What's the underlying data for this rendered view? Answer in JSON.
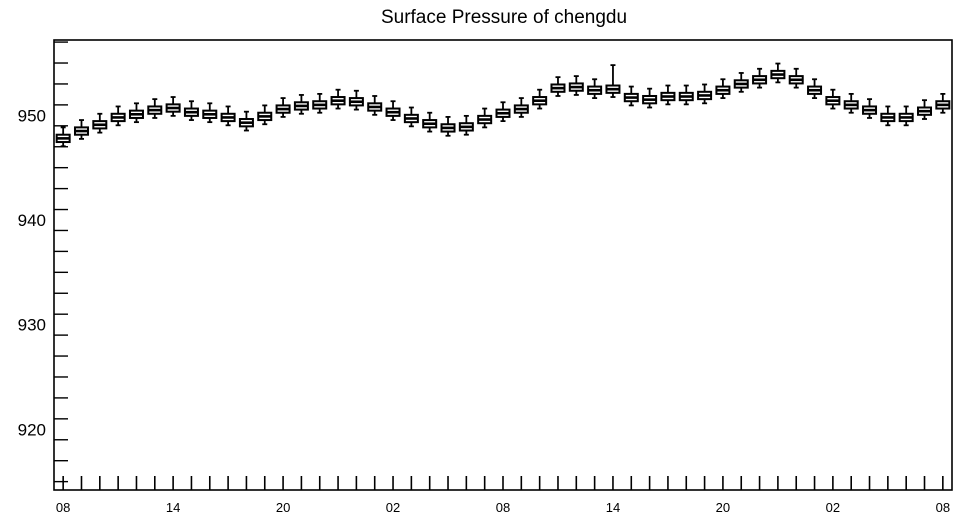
{
  "chart_data": {
    "type": "boxplot",
    "title": "Surface Pressure of chengdu",
    "xlabel": "",
    "ylabel": "",
    "grid": false,
    "legend": "none",
    "ylim": [
      914.2,
      957.2
    ],
    "x_range": [
      -0.5,
      48.5
    ],
    "y_ticks": [
      920,
      930,
      940,
      950
    ],
    "y_tick_labels": [
      "920",
      "930",
      "940",
      "950"
    ],
    "x_tick_labels": [
      {
        "index": 0,
        "label": "08"
      },
      {
        "index": 6,
        "label": "14"
      },
      {
        "index": 12,
        "label": "20"
      },
      {
        "index": 18,
        "label": "02"
      },
      {
        "index": 24,
        "label": "08"
      },
      {
        "index": 30,
        "label": "14"
      },
      {
        "index": 36,
        "label": "20"
      },
      {
        "index": 42,
        "label": "02"
      },
      {
        "index": 48,
        "label": "08"
      }
    ],
    "box_color": "#000000",
    "median_values": [
      947.8,
      948.5,
      949.1,
      949.8,
      950.1,
      950.5,
      950.7,
      950.3,
      950.1,
      949.8,
      949.3,
      949.9,
      950.6,
      950.9,
      951.0,
      951.4,
      951.3,
      950.8,
      950.3,
      949.7,
      949.2,
      948.8,
      948.9,
      949.6,
      950.2,
      950.6,
      951.4,
      952.6,
      952.7,
      952.4,
      952.5,
      951.7,
      951.5,
      951.8,
      951.8,
      951.9,
      952.4,
      953.0,
      953.4,
      953.9,
      953.4,
      952.4,
      951.4,
      951.0,
      950.5,
      949.8,
      949.8,
      950.4,
      951.0
    ]
  }
}
